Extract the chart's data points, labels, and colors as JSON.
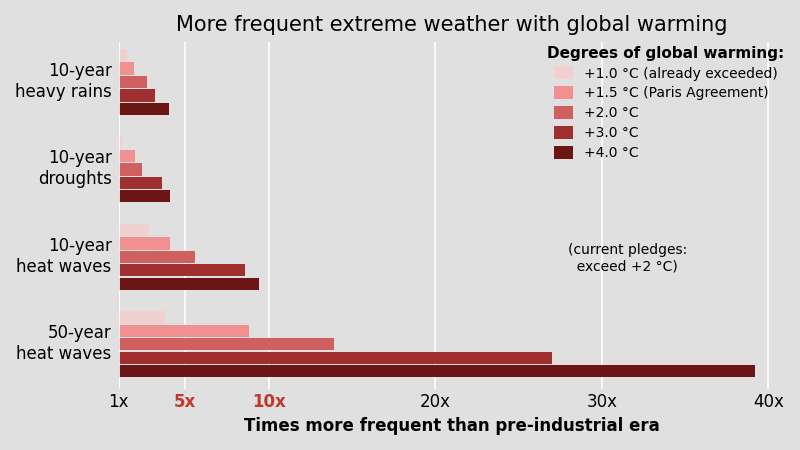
{
  "title": "More frequent extreme weather with global warming",
  "xlabel": "Times more frequent than pre-industrial era",
  "background_color": "#e0e0e0",
  "plot_bg_color": "#e8e8e8",
  "categories": [
    "10-year\nheavy rains",
    "10-year\ndroughts",
    "10-year\nheat waves",
    "50-year\nheat waves"
  ],
  "degrees": [
    "+1.0 °C (already exceeded)",
    "+1.5 °C (Paris Agreement)",
    "+2.0 °C",
    "+3.0 °C",
    "+4.0 °C"
  ],
  "colors": [
    "#f0d0d0",
    "#f09090",
    "#d06060",
    "#a03030",
    "#6b1515"
  ],
  "values": {
    "10-year\nheavy rains": [
      1.5,
      1.9,
      2.7,
      3.2,
      4.0
    ],
    "10-year\ndroughts": [
      1.2,
      2.0,
      2.4,
      3.6,
      4.1
    ],
    "10-year\nheat waves": [
      2.8,
      4.1,
      5.6,
      8.6,
      9.4
    ],
    "50-year\nheat waves": [
      3.8,
      8.8,
      13.9,
      27.0,
      39.2
    ]
  },
  "xticks": [
    1,
    5,
    10,
    20,
    30,
    40
  ],
  "xtick_labels": [
    "1x",
    "5x",
    "10x",
    "20x",
    "30x",
    "40x"
  ],
  "xtick_colors": [
    "black",
    "#c0392b",
    "#c0392b",
    "black",
    "black",
    "black"
  ],
  "xlim": [
    1,
    41
  ],
  "legend_title": "Degrees of global warming:",
  "legend_note": "(current pledges:\n  exceed +2 °C)",
  "title_fontsize": 15,
  "axis_label_fontsize": 12,
  "legend_fontsize": 10,
  "bar_height": 0.11,
  "bar_gap": 0.01
}
